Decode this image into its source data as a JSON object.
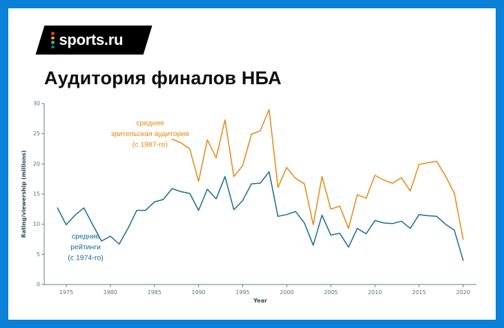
{
  "brand": {
    "logo_text": "sports.ru",
    "dot_colors": [
      "#e53935",
      "#f9a11b",
      "#3bb54a",
      "#1b75bb"
    ]
  },
  "title": "Аудитория финалов НБА",
  "theme": {
    "frame_color": "#0a80d8",
    "banner_bg": "#000000",
    "axis_color": "#5b7d91"
  },
  "chart_data": {
    "type": "line",
    "title": "Аудитория финалов НБА",
    "xlabel": "Year",
    "ylabel": "Rating/viewership (millions)",
    "xlim": [
      1972.5,
      2021.5
    ],
    "ylim": [
      0,
      30
    ],
    "xticks": [
      1975,
      1980,
      1985,
      1990,
      1995,
      2000,
      2005,
      2010,
      2015,
      2020
    ],
    "yticks": [
      0,
      5,
      10,
      15,
      20,
      25,
      30
    ],
    "grid": false,
    "legend": "inline-annotations",
    "series": [
      {
        "id": "ratings",
        "name": "средние рейтинги (с 1974-го)",
        "color": "#16688e",
        "start_year": 1974,
        "values": [
          12.7,
          9.9,
          11.5,
          12.7,
          9.9,
          7.2,
          8.0,
          6.7,
          9.3,
          12.3,
          12.3,
          13.7,
          14.1,
          15.9,
          15.4,
          15.1,
          12.3,
          15.8,
          14.2,
          17.9,
          12.4,
          13.9,
          16.7,
          16.8,
          18.7,
          11.3,
          11.6,
          12.1,
          10.2,
          6.5,
          11.5,
          8.2,
          8.5,
          6.2,
          9.3,
          8.4,
          10.6,
          10.2,
          10.1,
          10.5,
          9.3,
          11.6,
          11.4,
          11.3,
          10.0,
          9.0,
          4.0
        ]
      },
      {
        "id": "viewership",
        "name": "средняя зрительская аудитория (с 1987-го)",
        "color": "#e8860d",
        "start_year": 1987,
        "values": [
          24.1,
          23.5,
          22.5,
          17.1,
          24.0,
          21.0,
          27.3,
          17.9,
          19.7,
          24.9,
          25.5,
          29.0,
          16.1,
          19.4,
          17.6,
          16.7,
          9.9,
          17.9,
          12.5,
          13.0,
          9.3,
          14.9,
          14.3,
          18.1,
          17.3,
          16.8,
          17.7,
          15.5,
          19.9,
          20.2,
          20.4,
          18.0,
          15.1,
          7.5
        ]
      }
    ],
    "annotations": [
      {
        "id": "viewership",
        "color": "#e8860d",
        "x_year": 1984.5,
        "y_value": 26.4,
        "lines": [
          "средняя",
          "зрительская аудитория",
          "(с 1987-го)"
        ]
      },
      {
        "id": "ratings",
        "color": "#16688e",
        "x_year": 1977.2,
        "y_value": 7.6,
        "lines": [
          "средние",
          "рейтинги",
          "(с 1974-го)"
        ]
      }
    ]
  }
}
